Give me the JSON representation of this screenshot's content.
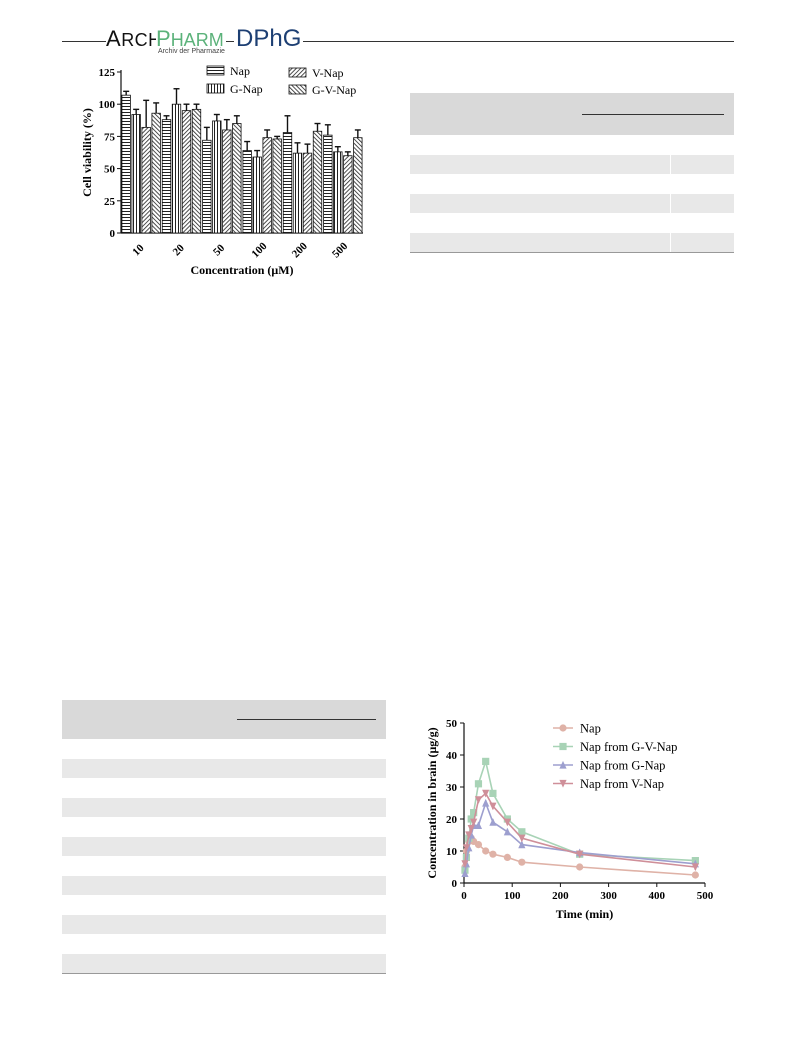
{
  "header": {
    "logo_arch_initial": "A",
    "logo_arch_rest": "RCH",
    "logo_pharm_initial": "P",
    "logo_pharm_rest": "HARM",
    "logo_subtitle": "Archiv der Pharmazie",
    "logo_dphg": "DPhG"
  },
  "figure_viability": {
    "chart_data": {
      "type": "bar",
      "xlabel": "Concentration (μM)",
      "ylabel": "Cell viability (%)",
      "ylim": [
        0,
        125
      ],
      "yticks": [
        "0",
        "25",
        "50",
        "75",
        "100",
        "125"
      ],
      "categories": [
        "10",
        "20",
        "50",
        "100",
        "200",
        "500"
      ],
      "legend_position": "top-right",
      "series": [
        {
          "name": "Nap",
          "values": [
            107,
            88,
            72,
            64,
            78,
            76
          ],
          "errors": [
            3,
            3,
            10,
            7,
            13,
            8
          ]
        },
        {
          "name": "G-Nap",
          "values": [
            92,
            100,
            87,
            59,
            62,
            63
          ],
          "errors": [
            4,
            12,
            5,
            5,
            8,
            4
          ]
        },
        {
          "name": "V-Nap",
          "values": [
            82,
            95,
            80,
            74,
            62,
            60
          ],
          "errors": [
            21,
            5,
            8,
            6,
            7,
            3
          ]
        },
        {
          "name": "G-V-Nap",
          "values": [
            93,
            96,
            85,
            73,
            79,
            74
          ],
          "errors": [
            8,
            4,
            6,
            2,
            6,
            6
          ]
        }
      ]
    }
  },
  "figure_brain": {
    "chart_data": {
      "type": "line",
      "xlabel": "Time (min)",
      "ylabel": "Concentration in brain (μg/g)",
      "xlim": [
        0,
        500
      ],
      "ylim": [
        0,
        50
      ],
      "xticks": [
        "0",
        "100",
        "200",
        "300",
        "400",
        "500"
      ],
      "yticks": [
        "0",
        "10",
        "20",
        "30",
        "40",
        "50"
      ],
      "legend_position": "top-right",
      "series": [
        {
          "name": "Nap",
          "color": "#dfb2a7",
          "marker": "circle",
          "x": [
            2,
            5,
            10,
            15,
            20,
            30,
            45,
            60,
            90,
            120,
            240,
            480
          ],
          "y": [
            5,
            10,
            13,
            14,
            13,
            12,
            10,
            9,
            8,
            6.5,
            5,
            2.5
          ]
        },
        {
          "name": "Nap from G-V-Nap",
          "color": "#a8d3b6",
          "marker": "square",
          "x": [
            2,
            5,
            10,
            15,
            20,
            30,
            45,
            60,
            90,
            120,
            240,
            480
          ],
          "y": [
            4,
            8,
            14,
            20,
            22,
            31,
            38,
            28,
            20,
            16,
            9,
            7
          ]
        },
        {
          "name": "Nap from G-Nap",
          "color": "#9d9fcf",
          "marker": "triangle",
          "x": [
            2,
            5,
            10,
            15,
            20,
            30,
            45,
            60,
            90,
            120,
            240,
            480
          ],
          "y": [
            3,
            6,
            11,
            15,
            18,
            18,
            25,
            19,
            16,
            12,
            9.5,
            6
          ]
        },
        {
          "name": "Nap from V-Nap",
          "color": "#cf8f99",
          "marker": "triangle-down",
          "x": [
            2,
            5,
            10,
            15,
            20,
            30,
            45,
            60,
            90,
            120,
            240,
            480
          ],
          "y": [
            6,
            11,
            15,
            17,
            19,
            26,
            28,
            24,
            19,
            14,
            9,
            5
          ]
        }
      ]
    }
  },
  "table_top": {
    "header_rule_present": true,
    "rows": 6
  },
  "table_bottom": {
    "header_rule_present": true,
    "rows": 12
  }
}
